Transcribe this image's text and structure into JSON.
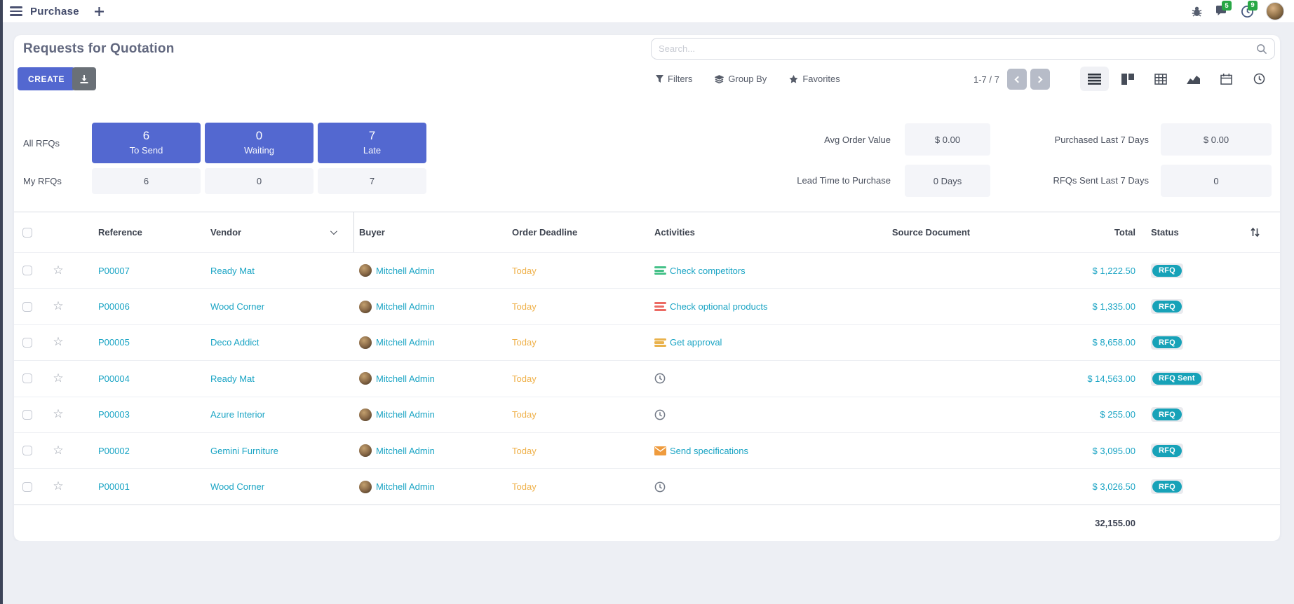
{
  "colors": {
    "primary": "#5368d0",
    "link_teal": "#1aa4c4",
    "status_badge": "#17a2b8",
    "warning_orange": "#efb14a",
    "notify_green": "#28a745",
    "activity_green": "#45c188",
    "activity_red": "#ec6a63",
    "activity_yellow": "#e9b24c"
  },
  "navbar": {
    "app_title": "Purchase",
    "messages_badge": "5",
    "activities_badge": "9",
    "icons": [
      "hamburger-icon",
      "plus-icon",
      "bug-icon",
      "messages-icon",
      "activity-clock-icon",
      "user-avatar"
    ]
  },
  "control": {
    "title": "Requests for Quotation",
    "create_label": "CREATE",
    "search_placeholder": "Search...",
    "filters_label": "Filters",
    "group_by_label": "Group By",
    "favorites_label": "Favorites",
    "pager": "1-7 / 7",
    "view_switcher": [
      "list-view",
      "kanban-view",
      "pivot-view",
      "graph-view",
      "calendar-view",
      "activity-view"
    ]
  },
  "dashboard": {
    "row_labels": [
      "All RFQs",
      "My RFQs"
    ],
    "queues": [
      {
        "count": "6",
        "label": "To Send",
        "my_count": "6"
      },
      {
        "count": "0",
        "label": "Waiting",
        "my_count": "0"
      },
      {
        "count": "7",
        "label": "Late",
        "my_count": "7"
      }
    ],
    "kpis": [
      {
        "label": "Avg Order Value",
        "value": "$ 0.00"
      },
      {
        "label": "Lead Time to Purchase",
        "value": "0 Days"
      },
      {
        "label": "Purchased Last 7 Days",
        "value": "$ 0.00"
      },
      {
        "label": "RFQs Sent Last 7 Days",
        "value": "0"
      }
    ]
  },
  "table": {
    "headers": {
      "reference": "Reference",
      "vendor": "Vendor",
      "buyer": "Buyer",
      "deadline": "Order Deadline",
      "activities": "Activities",
      "source": "Source Document",
      "total": "Total",
      "status": "Status"
    },
    "rows": [
      {
        "reference": "P00007",
        "vendor": "Ready Mat",
        "buyer": "Mitchell Admin",
        "deadline": "Today",
        "activity": {
          "type": "list",
          "color": "green",
          "label": "Check competitors"
        },
        "source": "",
        "total": "$ 1,222.50",
        "status": "RFQ"
      },
      {
        "reference": "P00006",
        "vendor": "Wood Corner",
        "buyer": "Mitchell Admin",
        "deadline": "Today",
        "activity": {
          "type": "list",
          "color": "red",
          "label": "Check optional products"
        },
        "source": "",
        "total": "$ 1,335.00",
        "status": "RFQ"
      },
      {
        "reference": "P00005",
        "vendor": "Deco Addict",
        "buyer": "Mitchell Admin",
        "deadline": "Today",
        "activity": {
          "type": "list",
          "color": "yellow",
          "label": "Get approval"
        },
        "source": "",
        "total": "$ 8,658.00",
        "status": "RFQ"
      },
      {
        "reference": "P00004",
        "vendor": "Ready Mat",
        "buyer": "Mitchell Admin",
        "deadline": "Today",
        "activity": {
          "type": "clock",
          "color": "",
          "label": ""
        },
        "source": "",
        "total": "$ 14,563.00",
        "status": "RFQ Sent"
      },
      {
        "reference": "P00003",
        "vendor": "Azure Interior",
        "buyer": "Mitchell Admin",
        "deadline": "Today",
        "activity": {
          "type": "clock",
          "color": "",
          "label": ""
        },
        "source": "",
        "total": "$ 255.00",
        "status": "RFQ"
      },
      {
        "reference": "P00002",
        "vendor": "Gemini Furniture",
        "buyer": "Mitchell Admin",
        "deadline": "Today",
        "activity": {
          "type": "mail",
          "color": "orange",
          "label": "Send specifications"
        },
        "source": "",
        "total": "$ 3,095.00",
        "status": "RFQ"
      },
      {
        "reference": "P00001",
        "vendor": "Wood Corner",
        "buyer": "Mitchell Admin",
        "deadline": "Today",
        "activity": {
          "type": "clock",
          "color": "",
          "label": ""
        },
        "source": "",
        "total": "$ 3,026.50",
        "status": "RFQ"
      }
    ],
    "total_sum": "32,155.00"
  }
}
